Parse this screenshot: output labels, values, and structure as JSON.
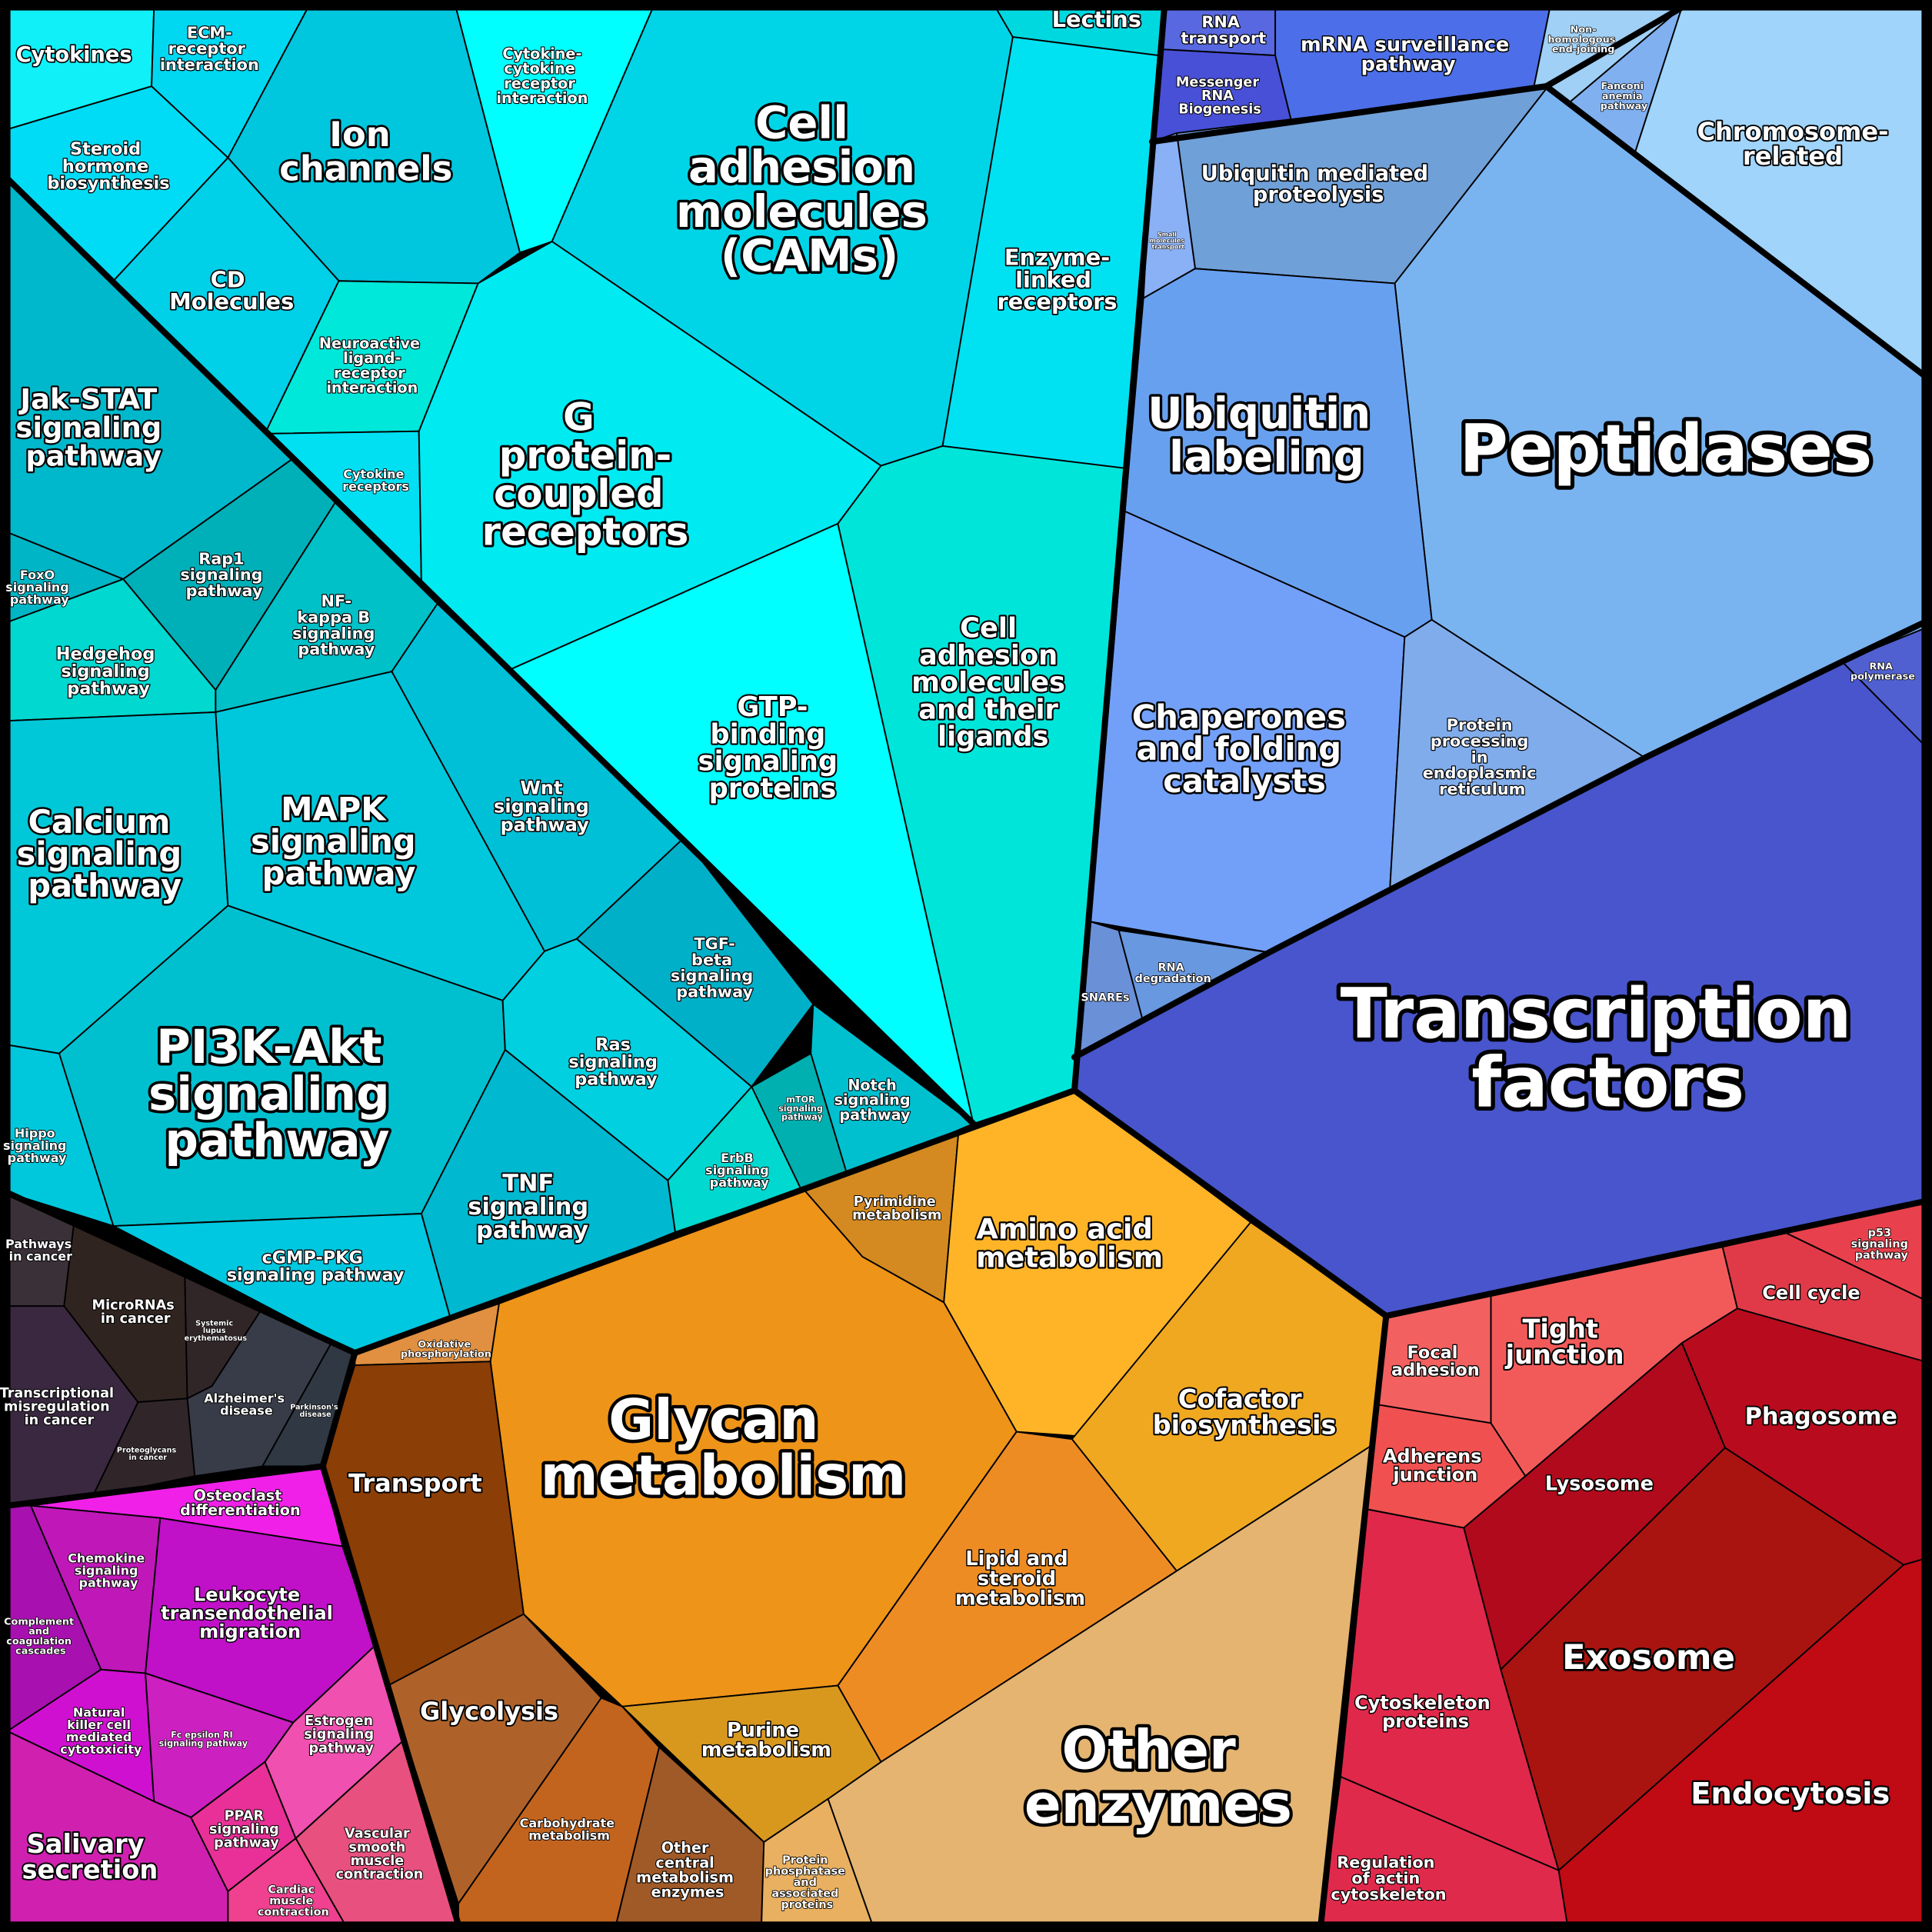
{
  "cells": [
    {
      "label": "Cytokines",
      "color": "#10f0f8"
    },
    {
      "label": "ECM-receptor interaction",
      "color": "#00d8f2"
    },
    {
      "label": "Steroid hormone biosynthesis",
      "color": "#00dcf5"
    },
    {
      "label": "Ion channels",
      "color": "#00c6de"
    },
    {
      "label": "CD Molecules",
      "color": "#00d0e8"
    },
    {
      "label": "Cytokine-cytokine receptor interaction",
      "color": "#00ffff"
    },
    {
      "label": "Neuroactive ligand-receptor interaction",
      "color": "#00e8da"
    },
    {
      "label": "Cytokine receptors",
      "color": "#00e0f2"
    },
    {
      "label": "Cell adhesion molecules (CAMs)",
      "color": "#00d5e8"
    },
    {
      "label": "Lectins",
      "color": "#00d8e0"
    },
    {
      "label": "Enzyme-linked receptors",
      "color": "#00e2f2"
    },
    {
      "label": "G protein-coupled receptors",
      "color": "#00eaf2"
    },
    {
      "label": "GTP-binding signaling proteins",
      "color": "#00ffff"
    },
    {
      "label": "Cell adhesion molecules and their ligands",
      "color": "#00e5da"
    },
    {
      "label": "Jak-STAT signaling pathway",
      "color": "#00b8cc"
    },
    {
      "label": "FoxO signaling pathway",
      "color": "#00b5c5"
    },
    {
      "label": "Rap1 signaling pathway",
      "color": "#00b0b8"
    },
    {
      "label": "Hedgehog signaling pathway",
      "color": "#00d8d0"
    },
    {
      "label": "NF-kappa B signaling pathway",
      "color": "#00c0c8"
    },
    {
      "label": "Calcium signaling pathway",
      "color": "#00c8d8"
    },
    {
      "label": "MAPK signaling pathway",
      "color": "#00c8dc"
    },
    {
      "label": "Wnt signaling pathway",
      "color": "#00c0d8"
    },
    {
      "label": "PI3K-Akt signaling pathway",
      "color": "#00c0d0"
    },
    {
      "label": "Hippo signaling pathway",
      "color": "#00c8dc"
    },
    {
      "label": "TGF-beta signaling pathway",
      "color": "#00b0c8"
    },
    {
      "label": "Ras signaling pathway",
      "color": "#00d0e0"
    },
    {
      "label": "Notch signaling pathway",
      "color": "#00c0d0"
    },
    {
      "label": "mTOR signaling pathway",
      "color": "#00b0b0"
    },
    {
      "label": "ErbB signaling pathway",
      "color": "#00d8d0"
    },
    {
      "label": "TNF signaling pathway",
      "color": "#00b8d0"
    },
    {
      "label": "cGMP-PKG signaling pathway",
      "color": "#00c8e0"
    },
    {
      "label": "RNA transport",
      "color": "#5868e0"
    },
    {
      "label": "Messenger RNA Biogenesis",
      "color": "#4850d8"
    },
    {
      "label": "mRNA surveillance pathway",
      "color": "#4c6ee8"
    },
    {
      "label": "Non-homologous end-joining",
      "color": "#a0d0f5"
    },
    {
      "label": "Fanconi anemia pathway",
      "color": "#80b0f0"
    },
    {
      "label": "Chromosome-related",
      "color": "#a0d4fa"
    },
    {
      "label": "Ubiquitin mediated proteolysis",
      "color": "#70a0d8"
    },
    {
      "label": "Small molecules transport",
      "color": "#8ab0f5"
    },
    {
      "label": "Peptidases",
      "color": "#7ab4f0"
    },
    {
      "label": "Ubiquitin labeling",
      "color": "#68a0f0"
    },
    {
      "label": "Chaperones and folding catalysts",
      "color": "#72a0f8"
    },
    {
      "label": "Protein processing in endoplasmic reticulum",
      "color": "#80aceb"
    },
    {
      "label": "SNAREs",
      "color": "#6a90d8"
    },
    {
      "label": "RNA degradation",
      "color": "#6898e0"
    },
    {
      "label": "RNA polymerase",
      "color": "#5060d0"
    },
    {
      "label": "Transcription factors",
      "color": "#4855cc"
    },
    {
      "label": "Pyrimidine metabolism",
      "color": "#d48a20"
    },
    {
      "label": "Amino acid metabolism",
      "color": "#ffb428"
    },
    {
      "label": "Cofactor biosynthesis",
      "color": "#f0a820"
    },
    {
      "label": "Glycan metabolism",
      "color": "#ee9418"
    },
    {
      "label": "Oxidative phosphorylation",
      "color": "#e09040"
    },
    {
      "label": "Transport",
      "color": "#8b3e06"
    },
    {
      "label": "Lipid and steroid metabolism",
      "color": "#ee8c24"
    },
    {
      "label": "Other enzymes",
      "color": "#e4b470"
    },
    {
      "label": "Purine metabolism",
      "color": "#d8981e"
    },
    {
      "label": "Glycolysis",
      "color": "#ae622a"
    },
    {
      "label": "Carbohydrate metabolism",
      "color": "#c2641e"
    },
    {
      "label": "Other central metabolism enzymes",
      "color": "#a05a28"
    },
    {
      "label": "Protein phosphatase and associated proteins",
      "color": "#e8b060"
    },
    {
      "label": "p53 signaling pathway",
      "color": "#e8404c"
    },
    {
      "label": "Cell cycle",
      "color": "#e03a48"
    },
    {
      "label": "Tight junction",
      "color": "#f25a5a"
    },
    {
      "label": "Focal adhesion",
      "color": "#f26060"
    },
    {
      "label": "Adherens junction",
      "color": "#f05050"
    },
    {
      "label": "Phagosome",
      "color": "#b80c1e"
    },
    {
      "label": "Lysosome",
      "color": "#b00a1c"
    },
    {
      "label": "Exosome",
      "color": "#aa1410"
    },
    {
      "label": "Endocytosis",
      "color": "#c00a14"
    },
    {
      "label": "Cytoskeleton proteins",
      "color": "#e0284a"
    },
    {
      "label": "Regulation of actin cytoskeleton",
      "color": "#e02a4c"
    },
    {
      "label": "Osteoclast differentiation",
      "color": "#f020e8"
    },
    {
      "label": "Complement and coagulation cascades",
      "color": "#a810b0"
    },
    {
      "label": "Chemokine signaling pathway",
      "color": "#c018b8"
    },
    {
      "label": "Leukocyte transendothelial migration",
      "color": "#c010c8"
    },
    {
      "label": "Natural killer cell mediated cytotoxicity",
      "color": "#d010d0"
    },
    {
      "label": "Fc epsilon RI signaling pathway",
      "color": "#cc20c0"
    },
    {
      "label": "Estrogen signaling pathway",
      "color": "#f050b0"
    },
    {
      "label": "Salivary secretion",
      "color": "#d020b0"
    },
    {
      "label": "PPAR signaling pathway",
      "color": "#e83098"
    },
    {
      "label": "Vascular smooth muscle contraction",
      "color": "#e85080"
    },
    {
      "label": "Cardiac muscle contraction",
      "color": "#f04090"
    },
    {
      "label": "Pathways in cancer",
      "color": "#3a3038"
    },
    {
      "label": "MicroRNAs in cancer",
      "color": "#302420"
    },
    {
      "label": "Systemic lupus erythematosus",
      "color": "#302628"
    },
    {
      "label": "Transcriptional misregulation in cancer",
      "color": "#3a2840"
    },
    {
      "label": "Alzheimer's disease",
      "color": "#383c48"
    },
    {
      "label": "Parkinson's disease",
      "color": "#303844"
    },
    {
      "label": "Proteoglycans in cancer",
      "color": "#30262a"
    }
  ]
}
